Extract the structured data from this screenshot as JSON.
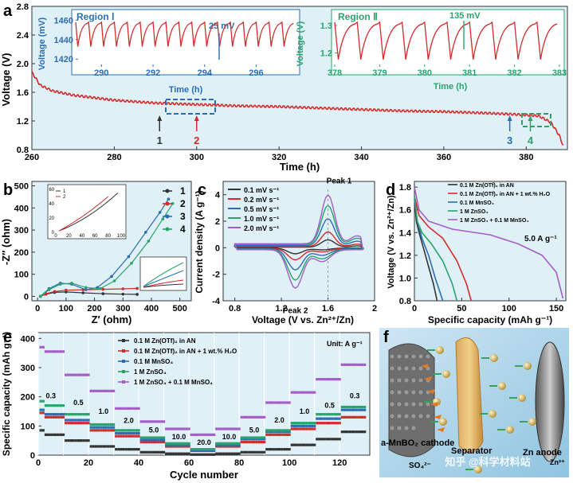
{
  "chart_data": [
    {
      "panel": "a",
      "type": "line",
      "xlabel": "Time (h)",
      "ylabel": "Voltage (V)",
      "xlim": [
        260,
        390
      ],
      "ylim": [
        0.8,
        2.8
      ],
      "xticks": [
        260,
        280,
        300,
        320,
        340,
        360,
        380
      ],
      "yticks": [
        0.8,
        1.2,
        1.6,
        2.0,
        2.4,
        2.8
      ],
      "series": [
        {
          "name": "Voltage",
          "color": "#d42a2a",
          "x": [
            260,
            262,
            265,
            270,
            280,
            290,
            300,
            310,
            320,
            330,
            340,
            350,
            360,
            370,
            378,
            383,
            386,
            388,
            389
          ],
          "y": [
            1.88,
            1.7,
            1.62,
            1.56,
            1.49,
            1.45,
            1.43,
            1.41,
            1.4,
            1.38,
            1.36,
            1.34,
            1.33,
            1.31,
            1.29,
            1.27,
            1.18,
            1.0,
            0.85
          ]
        }
      ],
      "markers": [
        {
          "label": "1",
          "x": 291,
          "color": "#333333"
        },
        {
          "label": "2",
          "x": 300,
          "color": "#d42a2a"
        },
        {
          "label": "3",
          "x": 376,
          "color": "#2a6db5"
        },
        {
          "label": "4",
          "x": 381,
          "color": "#2aa36b"
        }
      ],
      "insets": [
        {
          "title": "Region Ⅰ",
          "xlabel": "Time (h)",
          "ylabel": "Voltage (mV)",
          "xticks": [
            290,
            292,
            294,
            296
          ],
          "yticks": [
            1420,
            1440,
            1460
          ],
          "xlim": [
            289,
            297.5
          ],
          "ylim": [
            1412,
            1466
          ],
          "annotation": "25 mV"
        },
        {
          "title": "Region Ⅱ",
          "xlabel": "Time (h)",
          "ylabel": "Voltage (V)",
          "xticks": [
            378,
            379,
            380,
            381,
            382,
            383
          ],
          "yticks": [
            1.2,
            1.3
          ],
          "xlim": [
            378,
            383
          ],
          "ylim": [
            1.15,
            1.34
          ],
          "annotation": "135 mV"
        }
      ]
    },
    {
      "panel": "b",
      "type": "scatter",
      "xlabel": "Z′ (ohm)",
      "ylabel": "-Z″ (ohm)",
      "xlim": [
        -20,
        540
      ],
      "ylim": [
        -20,
        520
      ],
      "xticks": [
        0,
        100,
        200,
        300,
        400,
        500
      ],
      "yticks": [
        0,
        100,
        200,
        300,
        400,
        500
      ],
      "series": [
        {
          "name": "1",
          "color": "#333333",
          "x": [
            10,
            30,
            60,
            100,
            160,
            230,
            300,
            350
          ],
          "y": [
            0,
            10,
            18,
            20,
            16,
            12,
            10,
            9
          ]
        },
        {
          "name": "2",
          "color": "#d42a2a",
          "x": [
            10,
            30,
            60,
            100,
            160,
            230,
            300,
            350
          ],
          "y": [
            0,
            12,
            22,
            28,
            30,
            32,
            34,
            36
          ]
        },
        {
          "name": "3",
          "color": "#2a6db5",
          "x": [
            10,
            40,
            80,
            120,
            170,
            210,
            260,
            320,
            380,
            430,
            460
          ],
          "y": [
            0,
            35,
            60,
            55,
            30,
            40,
            90,
            180,
            290,
            380,
            440
          ]
        },
        {
          "name": "4",
          "color": "#2aa36b",
          "x": [
            10,
            40,
            80,
            120,
            170,
            220,
            270,
            330,
            390,
            440,
            475
          ],
          "y": [
            0,
            30,
            55,
            60,
            40,
            35,
            70,
            150,
            250,
            350,
            420
          ]
        }
      ],
      "insets": [
        {
          "legend": [
            "1",
            "2"
          ],
          "xlabel": "Z′ (ohm)",
          "ylabel": "-Z″ (ohm)",
          "xticks": [
            0,
            20,
            40,
            60,
            80,
            100
          ],
          "yticks": [
            0,
            20,
            40,
            60
          ]
        }
      ]
    },
    {
      "panel": "c",
      "type": "line",
      "xlabel": "Voltage (V vs. Zn²⁺/Zn)",
      "ylabel": "Current density (A g⁻¹)",
      "xlim": [
        0.7,
        2.0
      ],
      "ylim": [
        -4,
        5
      ],
      "xticks": [
        0.8,
        1.2,
        1.6,
        2.0
      ],
      "yticks": [
        -4,
        -2,
        0,
        2,
        4
      ],
      "series": [
        {
          "name": "0.1 mV s⁻¹",
          "color": "#333333",
          "scale": 0.15
        },
        {
          "name": "0.2 mV s⁻¹",
          "color": "#d42a2a",
          "scale": 0.3
        },
        {
          "name": "0.5 mV s⁻¹",
          "color": "#2a6db5",
          "scale": 0.55
        },
        {
          "name": "1.0 mV s⁻¹",
          "color": "#2aa36b",
          "scale": 0.8
        },
        {
          "name": "2.0 mV s⁻¹",
          "color": "#a45cc9",
          "scale": 1.0
        }
      ],
      "peaks": [
        {
          "label": "Peak 1",
          "x": 1.6,
          "y": 4.0
        },
        {
          "label": "Peak 2",
          "x": 1.32,
          "y": -3.0
        }
      ]
    },
    {
      "panel": "d",
      "type": "line",
      "xlabel": "Specific capacity (mAh g⁻¹)",
      "ylabel": "Voltage (V vs. Zn²⁺/Zn)",
      "xlim": [
        0,
        160
      ],
      "ylim": [
        0.8,
        1.85
      ],
      "xticks": [
        0,
        50,
        100,
        150
      ],
      "yticks": [
        0.8,
        1.0,
        1.2,
        1.4,
        1.6,
        1.8
      ],
      "annotation": "5.0 A g⁻¹",
      "series": [
        {
          "name": "0.1 M Zn(OTf)₂ in AN",
          "color": "#333333",
          "x": [
            0,
            2,
            5,
            10,
            15,
            20,
            24
          ],
          "y": [
            1.7,
            1.5,
            1.4,
            1.25,
            1.1,
            0.95,
            0.8
          ]
        },
        {
          "name": "0.1 M Zn(OTf)₂ in AN + 1 wt.% H₂O",
          "color": "#d42a2a",
          "x": [
            0,
            5,
            15,
            30,
            45,
            55,
            60
          ],
          "y": [
            1.72,
            1.55,
            1.45,
            1.35,
            1.15,
            0.95,
            0.8
          ]
        },
        {
          "name": "0.1 M MnSO₄",
          "color": "#2a6db5",
          "x": [
            0,
            3,
            8,
            15,
            22,
            28,
            30
          ],
          "y": [
            1.7,
            1.5,
            1.35,
            1.2,
            1.0,
            0.85,
            0.8
          ]
        },
        {
          "name": "1 M ZnSO₄",
          "color": "#2aa36b",
          "x": [
            0,
            3,
            8,
            18,
            30,
            40,
            45
          ],
          "y": [
            1.72,
            1.5,
            1.4,
            1.3,
            1.15,
            0.95,
            0.8
          ]
        },
        {
          "name": "1 M ZnSO₄ + 0.1 M MnSO₄",
          "color": "#a45cc9",
          "x": [
            0,
            5,
            15,
            40,
            80,
            110,
            135,
            150,
            157
          ],
          "y": [
            1.8,
            1.6,
            1.5,
            1.43,
            1.38,
            1.3,
            1.2,
            1.05,
            0.82
          ]
        }
      ]
    },
    {
      "panel": "e",
      "type": "scatter",
      "xlabel": "Cycle number",
      "ylabel": "Specific capacity (mAh g⁻¹)",
      "xlim": [
        0,
        132
      ],
      "ylim": [
        0,
        420
      ],
      "xticks": [
        0,
        20,
        40,
        60,
        80,
        100,
        120
      ],
      "yticks": [
        0,
        100,
        200,
        300,
        400
      ],
      "unit_note": "Unit: A g⁻¹",
      "rate_labels": [
        {
          "text": "0.3",
          "cycle": 5,
          "cap": 195
        },
        {
          "text": "0.5",
          "cycle": 16,
          "cap": 172
        },
        {
          "text": "1.0",
          "cycle": 26,
          "cap": 142
        },
        {
          "text": "2.0",
          "cycle": 36,
          "cap": 110
        },
        {
          "text": "5.0",
          "cycle": 46,
          "cap": 78
        },
        {
          "text": "10.0",
          "cycle": 56,
          "cap": 55
        },
        {
          "text": "20.0",
          "cycle": 66,
          "cap": 35
        },
        {
          "text": "10.0",
          "cycle": 76,
          "cap": 55
        },
        {
          "text": "5.0",
          "cycle": 86,
          "cap": 78
        },
        {
          "text": "2.0",
          "cycle": 96,
          "cap": 112
        },
        {
          "text": "1.0",
          "cycle": 106,
          "cap": 142
        },
        {
          "text": "0.5",
          "cycle": 116,
          "cap": 162
        },
        {
          "text": "0.3",
          "cycle": 126,
          "cap": 195
        }
      ],
      "series": [
        {
          "name": "0.1 M Zn(OTf)₂ in AN",
          "color": "#333333",
          "values": [
            70,
            50,
            30,
            20,
            10,
            5,
            2,
            5,
            10,
            20,
            35,
            55,
            80
          ]
        },
        {
          "name": "0.1 M Zn(OTf)₂ in AN + 1 wt.% H₂O",
          "color": "#d42a2a",
          "values": [
            130,
            110,
            85,
            65,
            45,
            30,
            15,
            30,
            45,
            70,
            90,
            110,
            130
          ]
        },
        {
          "name": "0.1 M MnSO₄",
          "color": "#2a6db5",
          "values": [
            140,
            120,
            95,
            75,
            52,
            35,
            18,
            35,
            55,
            80,
            100,
            125,
            155
          ]
        },
        {
          "name": "1 M ZnSO₄",
          "color": "#2aa36b",
          "values": [
            170,
            140,
            105,
            85,
            60,
            40,
            20,
            40,
            60,
            85,
            110,
            140,
            165
          ]
        },
        {
          "name": "1 M ZnSO₄ + 0.1 M MnSO₄",
          "color": "#a45cc9",
          "values": [
            355,
            275,
            220,
            160,
            115,
            90,
            70,
            90,
            130,
            180,
            215,
            260,
            310
          ]
        }
      ]
    }
  ],
  "panel_f": {
    "letter": "f",
    "cathode_label": "a-MnBO₂ cathode",
    "separator_label": "Separator",
    "anode_label": "Zn anode",
    "ion_labels": [
      "SO₄²⁻",
      "Zn²⁺"
    ],
    "watermark": "知乎 @科学材料站"
  },
  "panel_letters": [
    "a",
    "b",
    "c",
    "d",
    "e",
    "f"
  ]
}
